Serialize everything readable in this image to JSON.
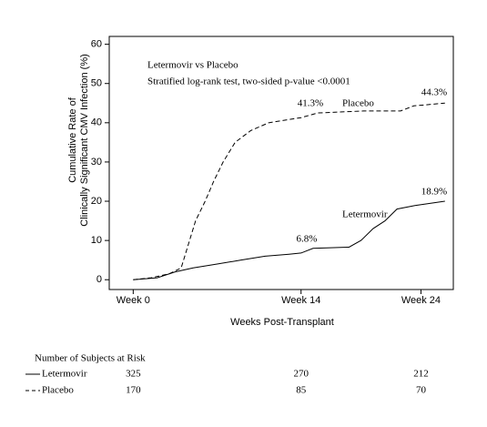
{
  "chart_data": {
    "type": "line",
    "x_label": "Weeks Post-Transplant",
    "y_label": [
      "Cumulative Rate of",
      "Clinically Significant CMV Infection (%)"
    ],
    "xlim": [
      -2,
      26.7
    ],
    "ylim": [
      -2.5,
      62
    ],
    "xticks": [
      {
        "value": 0,
        "label": "Week 0"
      },
      {
        "value": 14,
        "label": "Week 14"
      },
      {
        "value": 24,
        "label": "Week 24"
      }
    ],
    "yticks": [
      0,
      10,
      20,
      30,
      40,
      50,
      60
    ],
    "annotations": [
      "Letermovir vs Placebo",
      "Stratified log-rank test, two-sided p-value <0.0001",
      "41.3%",
      "Placebo",
      "44.3%",
      "Letermovir",
      "6.8%",
      "18.9%"
    ],
    "series": [
      {
        "name": "Letermovir",
        "color": "#000000",
        "dashed": false,
        "x": [
          0,
          2,
          3.5,
          5,
          7,
          9,
          11,
          13,
          14,
          15,
          18,
          19,
          20,
          21,
          22,
          23.5,
          26
        ],
        "values": [
          0,
          0.5,
          2,
          3,
          4,
          5,
          6,
          6.5,
          6.8,
          8,
          8.3,
          10,
          13,
          15,
          18,
          18.9,
          20
        ]
      },
      {
        "name": "Placebo",
        "color": "#000000",
        "dashed": true,
        "x": [
          0,
          1.5,
          3,
          4,
          4.5,
          5.2,
          6,
          6.7,
          7.5,
          8.5,
          9.8,
          11.3,
          14,
          15.4,
          19.2,
          22.3,
          23.4,
          26
        ],
        "values": [
          0,
          0.5,
          1.5,
          3,
          8,
          15,
          20,
          25,
          30,
          35,
          38,
          40,
          41.3,
          42.5,
          43,
          43,
          44.3,
          45
        ]
      }
    ],
    "risk_table": {
      "title": "Number of Subjects at Risk",
      "rows": [
        {
          "name": "Letermovir",
          "values": [
            325,
            270,
            212
          ]
        },
        {
          "name": "Placebo",
          "values": [
            170,
            85,
            70
          ]
        }
      ]
    }
  }
}
